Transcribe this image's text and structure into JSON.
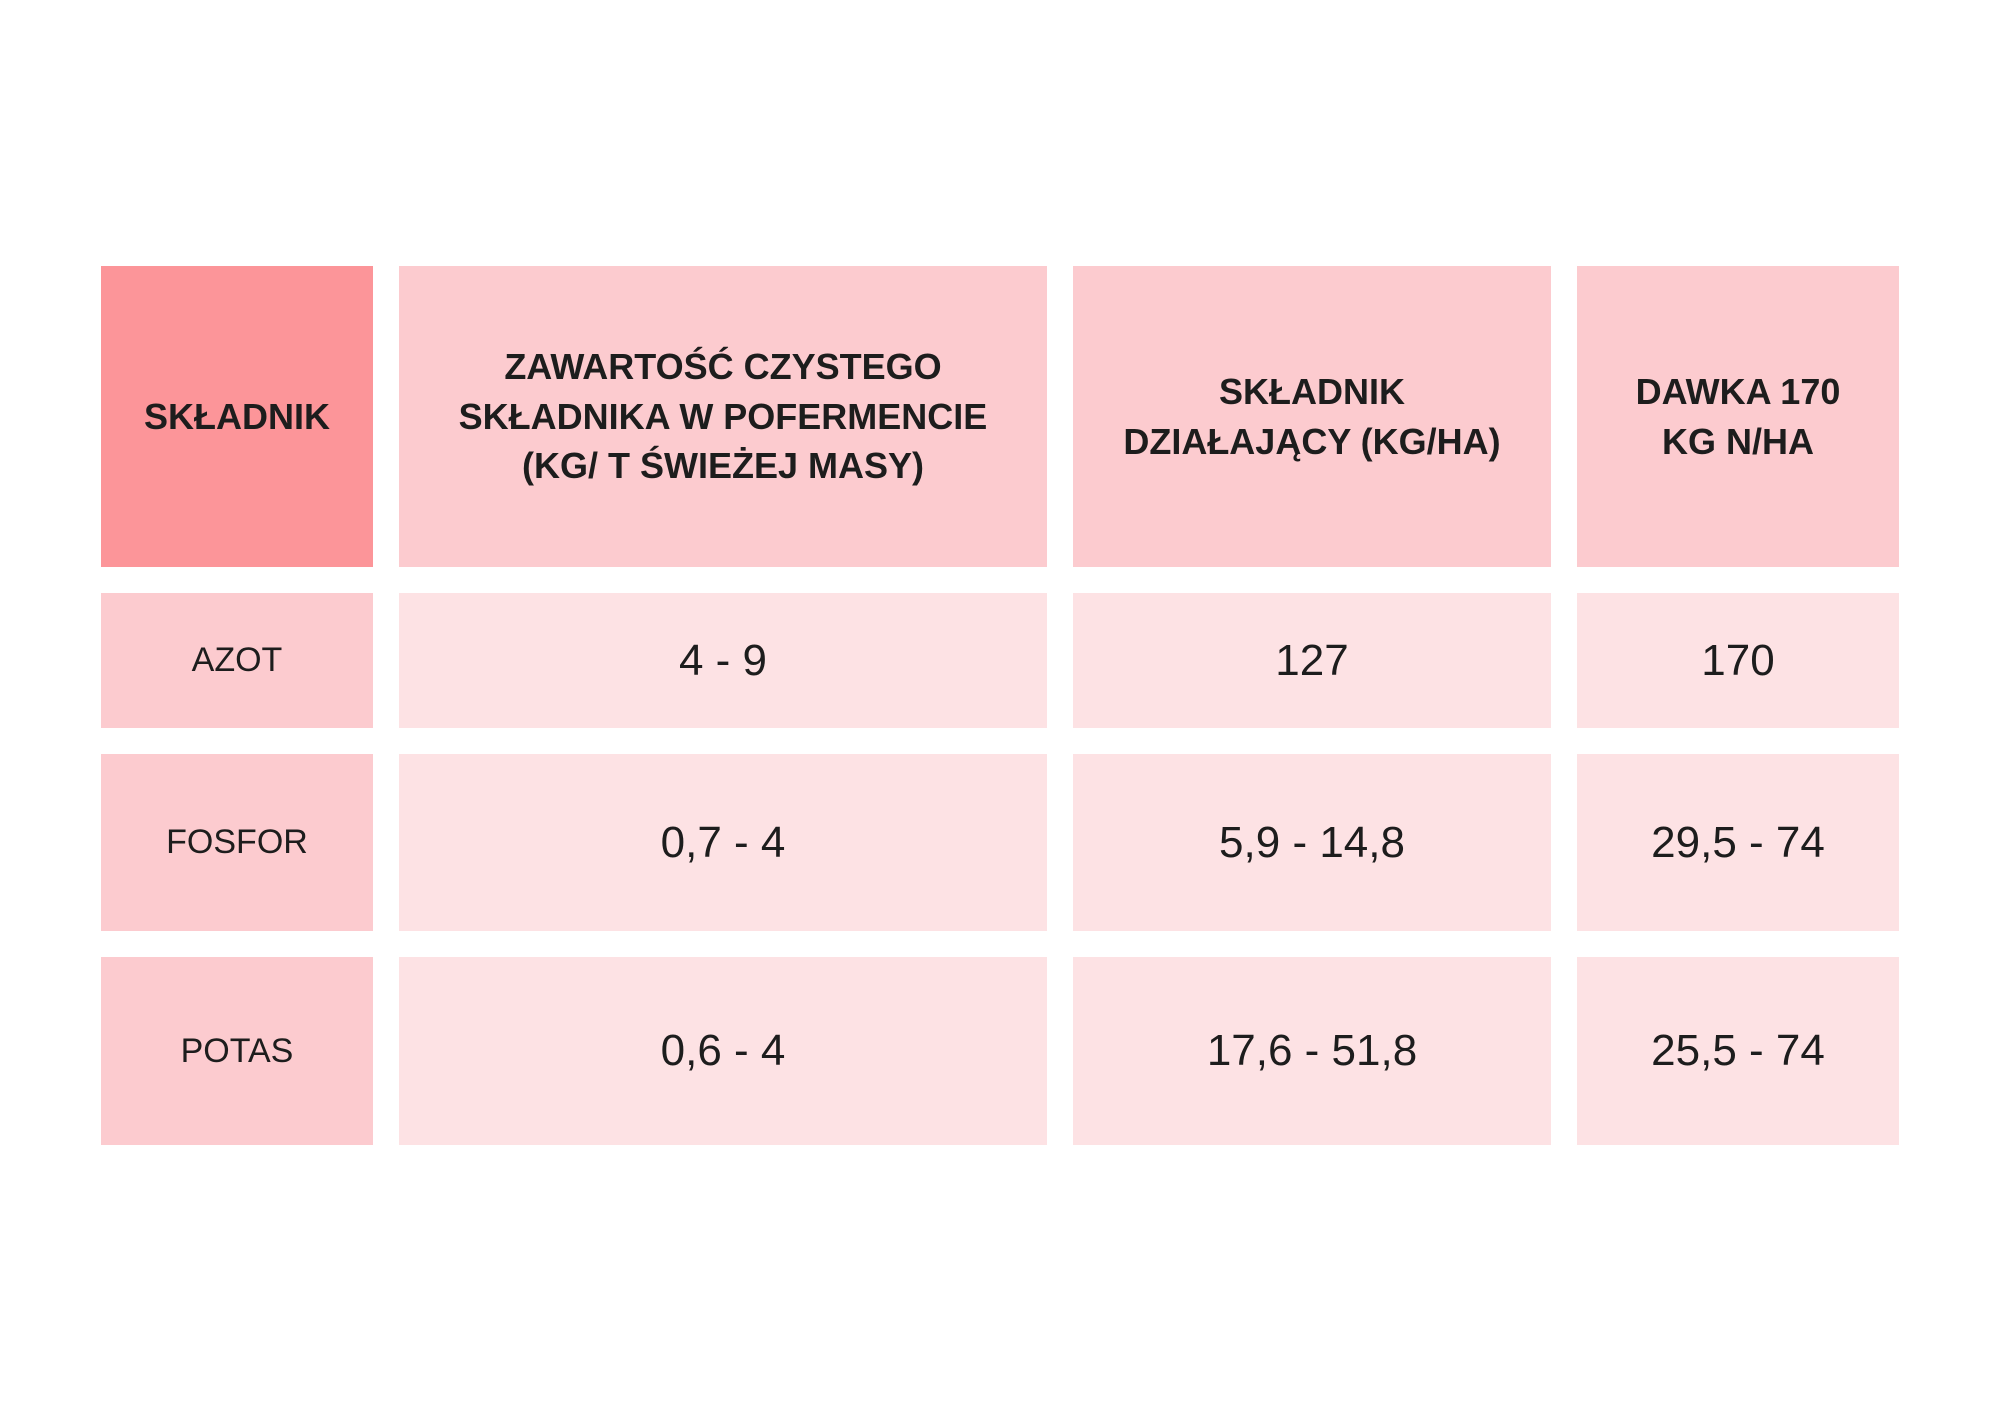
{
  "chart_data": {
    "type": "table",
    "columns": [
      "SKŁADNIK",
      "ZAWARTOŚĆ CZYSTEGO SKŁADNIKA W POFERMENCIE (KG/ T ŚWIEŻEJ MASY)",
      "SKŁADNIK DZIAŁAJĄCY (KG/HA)",
      "DAWKA 170 KG N/HA"
    ],
    "rows": [
      [
        "AZOT",
        "4 - 9",
        "127",
        "170"
      ],
      [
        "FOSFOR",
        "0,7 - 4",
        "5,9 - 14,8",
        "29,5 - 74"
      ],
      [
        "POTAS",
        "0,6 - 4",
        "17,6 - 51,8",
        "25,5 - 74"
      ]
    ],
    "layout": {
      "grid": "off",
      "legend": "none",
      "cell_gaps": true
    }
  },
  "colors": {
    "header_accent": "#FC9599",
    "header_pink": "#FCCBCF",
    "cell_pink": "#FDE2E4",
    "text": "#1D1D1D",
    "background": "#FFFFFF"
  }
}
